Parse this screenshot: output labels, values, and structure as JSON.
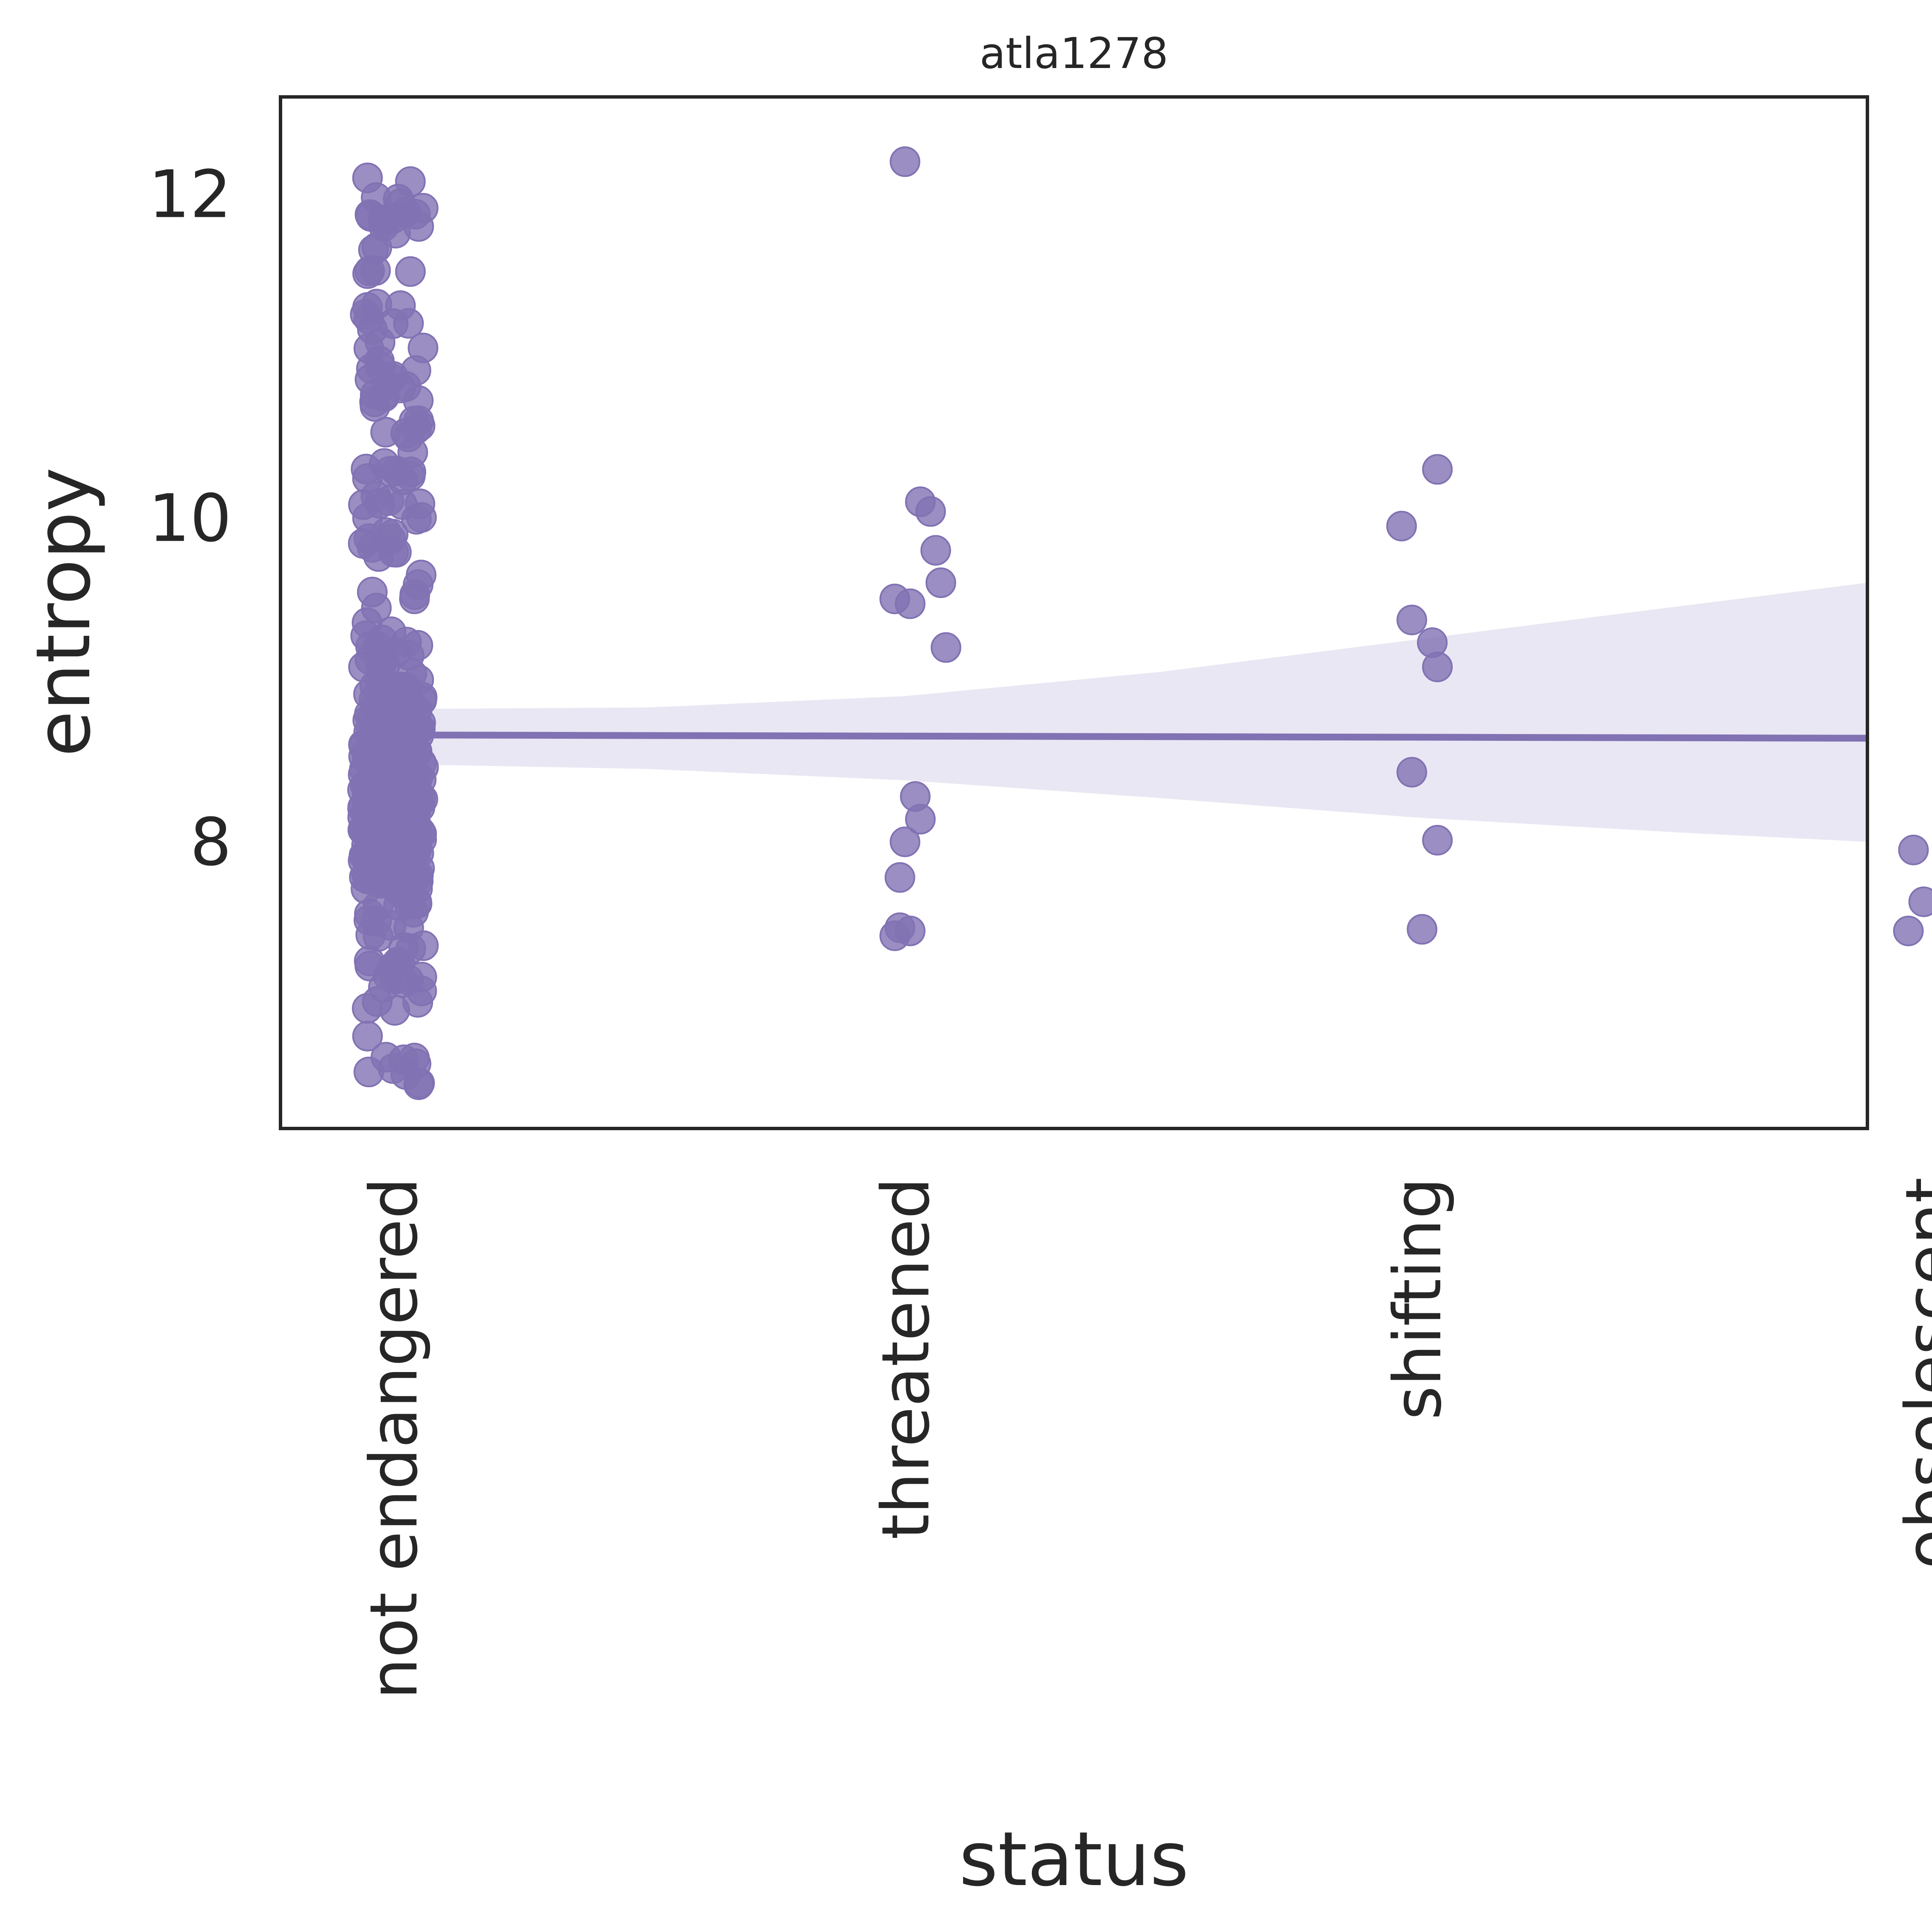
{
  "chart_data": {
    "type": "scatter",
    "title": "atla1278",
    "xlabel": "status",
    "ylabel": "entropy",
    "categories": [
      "not endangered",
      "threatened",
      "shifting",
      "obsolescent"
    ],
    "ylim": [
      6.23,
      12.6
    ],
    "yticks": [
      8,
      10,
      12
    ],
    "xlim": [
      -0.22,
      2.88
    ],
    "grid": false,
    "colors": {
      "points": "#8172b3",
      "band": "#e9e7f3",
      "frame": "#262626",
      "text": "#262626"
    },
    "regression": {
      "start": [
        0.0,
        8.66
      ],
      "end": [
        2.88,
        8.64
      ],
      "band_upper": [
        [
          0.0,
          8.82
        ],
        [
          0.5,
          8.83
        ],
        [
          1.0,
          8.9
        ],
        [
          1.5,
          9.05
        ],
        [
          2.0,
          9.25
        ],
        [
          2.5,
          9.45
        ],
        [
          2.88,
          9.6
        ]
      ],
      "band_lower": [
        [
          0.0,
          8.48
        ],
        [
          0.5,
          8.45
        ],
        [
          1.0,
          8.38
        ],
        [
          1.5,
          8.27
        ],
        [
          2.0,
          8.15
        ],
        [
          2.5,
          8.06
        ],
        [
          2.88,
          8.0
        ]
      ]
    },
    "series": [
      {
        "category": "threatened",
        "x": [
          1.0,
          1.03,
          1.05,
          1.06,
          1.07,
          1.08,
          0.98,
          1.01,
          1.02,
          1.03,
          1.0,
          0.99,
          0.98,
          0.99,
          1.01
        ],
        "y": [
          12.2,
          10.1,
          10.04,
          9.8,
          9.6,
          9.2,
          9.5,
          9.47,
          8.28,
          8.14,
          8.0,
          7.78,
          7.42,
          7.47,
          7.45
        ]
      },
      {
        "category": "shifting",
        "x": [
          2.04,
          1.97,
          1.99,
          2.03,
          2.04,
          1.99,
          2.04,
          2.01
        ],
        "y": [
          10.3,
          9.95,
          9.37,
          9.23,
          9.08,
          8.43,
          8.01,
          7.46
        ]
      },
      {
        "category": "obsolescent",
        "x": [
          2.97,
          2.99,
          2.96
        ],
        "y": [
          7.95,
          7.63,
          7.45
        ]
      }
    ],
    "dense_cloud": {
      "category": "not endangered",
      "count": 380,
      "x_spread": 0.06,
      "y_range": [
        6.5,
        12.1
      ],
      "y_center": 8.3,
      "highlights_y": [
        12.1,
        11.85,
        11.8,
        11.3,
        11.2,
        10.6,
        10.0,
        9.9,
        9.0,
        6.8,
        6.6,
        6.5
      ]
    }
  }
}
